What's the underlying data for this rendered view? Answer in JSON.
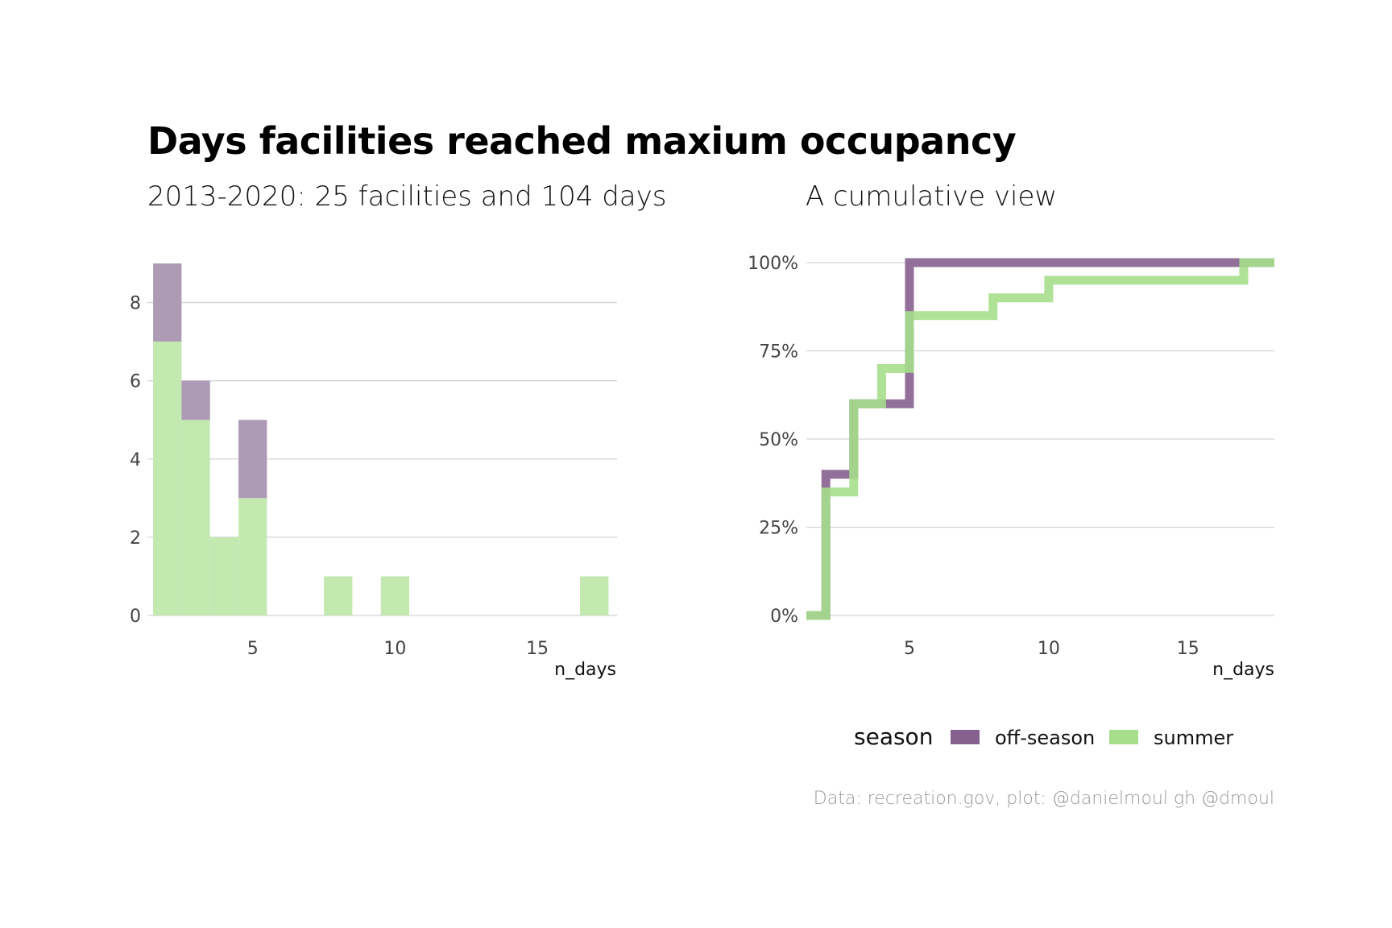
{
  "title": "Days facilities reached maxium occupancy",
  "caption": "Data: recreation.gov, plot: @danielmoul gh @dmoul",
  "legend": {
    "title": "season",
    "items": [
      {
        "label": "off-season",
        "color": "#86618f"
      },
      {
        "label": "summer",
        "color": "#a6de8c"
      }
    ]
  },
  "chart_data": [
    {
      "type": "bar",
      "subtitle": "2013-2020: 25 facilities and 104 days",
      "xlabel": "n_days",
      "ylabel": "",
      "stacked": true,
      "xlim": [
        1.3,
        17.8
      ],
      "ylim": [
        0,
        9
      ],
      "x_ticks": [
        5,
        10,
        15
      ],
      "y_ticks": [
        0,
        2,
        4,
        6,
        8
      ],
      "grid": "horizontal",
      "bins": [
        {
          "x": 2,
          "summer": 7,
          "off_season": 2
        },
        {
          "x": 3,
          "summer": 5,
          "off_season": 1
        },
        {
          "x": 4,
          "summer": 2,
          "off_season": 0
        },
        {
          "x": 5,
          "summer": 3,
          "off_season": 2
        },
        {
          "x": 8,
          "summer": 1,
          "off_season": 0
        },
        {
          "x": 10,
          "summer": 1,
          "off_season": 0
        },
        {
          "x": 17,
          "summer": 1,
          "off_season": 0
        }
      ],
      "colors": {
        "summer": "#c3e9b1",
        "off_season": "#ad9bb5"
      }
    },
    {
      "type": "line",
      "subtitle": "A cumulative view",
      "xlabel": "n_days",
      "ylabel": "",
      "step": true,
      "xlim": [
        1.3,
        18.1
      ],
      "ylim": [
        0,
        1
      ],
      "x_ticks": [
        5,
        10,
        15
      ],
      "y_ticks": [
        0,
        0.25,
        0.5,
        0.75,
        1
      ],
      "y_tick_labels": [
        "0%",
        "25%",
        "50%",
        "75%",
        "100%"
      ],
      "grid": "horizontal",
      "series": [
        {
          "name": "off-season",
          "color": "#86618f",
          "x": [
            1.3,
            2,
            3,
            5,
            17,
            18.1
          ],
          "y": [
            0,
            0.4,
            0.6,
            1.0,
            1.0,
            1.0
          ]
        },
        {
          "name": "summer",
          "color": "#a6de8c",
          "x": [
            1.3,
            2,
            3,
            4,
            5,
            8,
            10,
            17,
            18.1
          ],
          "y": [
            0,
            0.35,
            0.6,
            0.7,
            0.85,
            0.9,
            0.95,
            1.0,
            1.0
          ]
        }
      ]
    }
  ]
}
